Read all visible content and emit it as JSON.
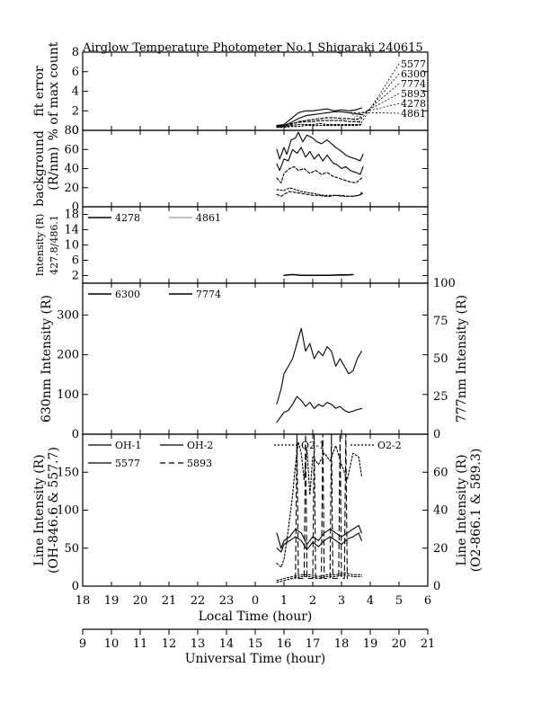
{
  "title": "Airglow Temperature Photometer No.1  Shigaraki  240615",
  "chart_data": [
    {
      "panel": "fit-error",
      "type": "line",
      "ylabel": [
        "fit error",
        "% of max count"
      ],
      "ylim": [
        0,
        8
      ],
      "yticks": [
        0,
        2,
        4,
        6,
        8
      ],
      "legend": [
        "5577",
        "6300",
        "7774",
        "5893",
        "4278",
        "4861"
      ],
      "series": [
        {
          "name": "5577",
          "x": [
            0.75,
            1.0,
            1.25,
            1.5,
            1.75,
            2.0,
            2.25,
            2.5,
            2.75,
            3.0,
            3.25,
            3.5,
            3.7
          ],
          "values": [
            0.5,
            0.6,
            1.2,
            1.8,
            2.0,
            2.0,
            2.1,
            2.2,
            2.0,
            2.1,
            2.0,
            2.1,
            2.3
          ]
        },
        {
          "name": "6300",
          "x": [
            0.75,
            1.0,
            1.25,
            1.5,
            1.75,
            2.0,
            2.25,
            2.5,
            2.75,
            3.0,
            3.25,
            3.5,
            3.7
          ],
          "values": [
            0.4,
            0.5,
            0.8,
            1.2,
            1.5,
            1.6,
            1.7,
            1.8,
            1.9,
            1.9,
            1.8,
            1.7,
            1.6
          ]
        },
        {
          "name": "7774",
          "x": [
            0.75,
            1.0,
            1.25,
            1.5,
            1.75,
            2.0,
            2.25,
            2.5,
            2.75,
            3.0,
            3.25,
            3.5,
            3.7
          ],
          "values": [
            0.3,
            0.4,
            0.6,
            0.9,
            1.0,
            1.1,
            1.2,
            1.3,
            1.3,
            1.2,
            1.2,
            1.1,
            1.3
          ]
        },
        {
          "name": "5893",
          "x": [
            0.75,
            1.0,
            1.25,
            1.5,
            1.75,
            2.0,
            2.25,
            2.5,
            2.75,
            3.0,
            3.25,
            3.5,
            3.7
          ],
          "values": [
            0.5,
            0.5,
            0.7,
            0.8,
            0.9,
            0.9,
            1.0,
            1.0,
            1.0,
            1.0,
            0.9,
            0.9,
            0.8
          ]
        },
        {
          "name": "4278",
          "x": [
            0.75,
            1.0,
            1.25,
            1.5,
            1.75,
            2.0,
            2.25,
            2.5,
            2.75,
            3.0,
            3.25,
            3.5,
            3.7
          ],
          "values": [
            0.4,
            0.4,
            0.5,
            0.6,
            0.6,
            0.6,
            0.7,
            0.6,
            0.6,
            0.6,
            0.6,
            0.6,
            0.6
          ]
        },
        {
          "name": "4861",
          "x": [
            0.75,
            1.0,
            1.25,
            1.5,
            1.75,
            2.0,
            2.25,
            2.5,
            2.75,
            3.0,
            3.25,
            3.5,
            3.7
          ],
          "values": [
            0.3,
            0.3,
            0.4,
            0.4,
            0.5,
            0.5,
            0.5,
            0.5,
            0.5,
            0.5,
            0.5,
            0.5,
            0.6
          ]
        }
      ]
    },
    {
      "panel": "background",
      "type": "line",
      "ylabel": [
        "background",
        "(R/nm)"
      ],
      "ylim": [
        0,
        80
      ],
      "yticks": [
        0,
        20,
        40,
        60,
        80
      ],
      "series": [
        {
          "x": [
            0.75,
            0.85,
            1.0,
            1.1,
            1.25,
            1.4,
            1.5,
            1.65,
            1.8,
            2.0,
            2.15,
            2.3,
            2.5,
            2.65,
            2.8,
            3.0,
            3.15,
            3.3,
            3.5,
            3.65,
            3.75
          ],
          "values": [
            60,
            50,
            62,
            55,
            70,
            72,
            78,
            68,
            75,
            72,
            68,
            66,
            70,
            66,
            62,
            58,
            54,
            52,
            50,
            48,
            55
          ]
        },
        {
          "x": [
            0.75,
            0.85,
            1.0,
            1.15,
            1.3,
            1.45,
            1.6,
            1.75,
            1.9,
            2.05,
            2.2,
            2.35,
            2.5,
            2.7,
            2.85,
            3.0,
            3.15,
            3.3,
            3.5,
            3.65,
            3.75
          ],
          "values": [
            45,
            38,
            50,
            48,
            60,
            56,
            62,
            52,
            58,
            50,
            55,
            48,
            54,
            46,
            44,
            40,
            42,
            38,
            36,
            34,
            42
          ]
        },
        {
          "x": [
            0.75,
            0.9,
            1.0,
            1.2,
            1.35,
            1.5,
            1.7,
            1.9,
            2.1,
            2.3,
            2.5,
            2.7,
            2.9,
            3.1,
            3.3,
            3.5,
            3.7
          ],
          "values": [
            30,
            25,
            35,
            40,
            42,
            38,
            40,
            35,
            38,
            34,
            36,
            32,
            30,
            28,
            26,
            25,
            30
          ]
        },
        {
          "x": [
            0.75,
            0.9,
            1.0,
            1.2,
            1.4,
            1.6,
            1.8,
            2.0,
            2.2,
            2.4,
            2.6,
            2.8,
            3.0,
            3.2,
            3.4,
            3.6,
            3.75
          ],
          "values": [
            13,
            11,
            13,
            16,
            15,
            14,
            13,
            12,
            12,
            11,
            11,
            12,
            12,
            11,
            11,
            12,
            14
          ]
        },
        {
          "x": [
            0.75,
            1.0,
            1.2,
            1.4,
            1.6,
            1.8,
            2.0,
            2.2,
            2.4,
            2.6,
            2.8,
            3.0,
            3.2,
            3.4,
            3.6,
            3.75
          ],
          "values": [
            18,
            17,
            20,
            18,
            16,
            15,
            14,
            13,
            12,
            12,
            12,
            11,
            11,
            11,
            12,
            16
          ]
        }
      ]
    },
    {
      "panel": "intensity-4278-4861",
      "type": "line",
      "ylabel": [
        "Intensity (R)",
        "427.8/486.1"
      ],
      "ylim": [
        0,
        20
      ],
      "yticks": [
        2,
        6,
        10,
        14,
        18
      ],
      "legend": [
        "4278",
        "4861"
      ],
      "series": [
        {
          "name": "4278",
          "x": [
            1.0,
            1.3,
            1.6,
            1.8,
            2.0,
            2.3,
            2.6,
            2.9,
            3.2,
            3.4
          ],
          "values": [
            2.0,
            2.2,
            2.0,
            2.0,
            2.0,
            2.0,
            2.0,
            2.1,
            2.1,
            2.2
          ]
        },
        {
          "name": "4861",
          "x": [
            1.0,
            1.3,
            1.6,
            1.8,
            2.0,
            2.3,
            2.6,
            2.9,
            3.2,
            3.4
          ],
          "values": [
            2.1,
            2.3,
            2.1,
            2.1,
            2.1,
            2.1,
            2.1,
            2.2,
            2.2,
            2.3
          ]
        }
      ]
    },
    {
      "panel": "intensity-6300-7774",
      "type": "line",
      "ylabel": "630nm Intensity (R)",
      "ylabel_right": "777nm Intensity (R)",
      "ylim": [
        0,
        380
      ],
      "yticks": [
        0,
        100,
        200,
        300
      ],
      "ylim_right": [
        0,
        100
      ],
      "yticks_right": [
        0,
        25,
        50,
        75,
        100
      ],
      "legend": [
        "6300",
        "7774"
      ],
      "series": [
        {
          "name": "6300",
          "x": [
            0.75,
            0.9,
            1.0,
            1.15,
            1.3,
            1.45,
            1.6,
            1.75,
            1.9,
            2.05,
            2.2,
            2.35,
            2.5,
            2.65,
            2.8,
            2.95,
            3.1,
            3.25,
            3.4,
            3.55,
            3.7
          ],
          "values": [
            30,
            45,
            55,
            60,
            75,
            95,
            85,
            70,
            80,
            65,
            75,
            70,
            80,
            75,
            65,
            70,
            60,
            55,
            58,
            62,
            65
          ]
        },
        {
          "name": "7774",
          "x": [
            0.75,
            0.9,
            1.0,
            1.15,
            1.3,
            1.45,
            1.6,
            1.75,
            1.9,
            2.05,
            2.2,
            2.35,
            2.5,
            2.65,
            2.8,
            2.95,
            3.1,
            3.25,
            3.4,
            3.55,
            3.7
          ],
          "values": [
            20,
            30,
            40,
            45,
            50,
            60,
            70,
            55,
            60,
            50,
            55,
            52,
            58,
            55,
            45,
            50,
            45,
            40,
            42,
            50,
            55
          ]
        }
      ]
    },
    {
      "panel": "line-intensity",
      "type": "line",
      "xlabel": "Local Time (hour)",
      "ylabel": [
        "Line Intensity (R)",
        "(OH-846.6 & 557.7)"
      ],
      "ylabel_right": [
        "Line Intensity (R)",
        "(O2-866.1 & 589.3)"
      ],
      "ylim": [
        0,
        200
      ],
      "yticks": [
        0,
        50,
        100,
        150
      ],
      "ylim_right": [
        0,
        80
      ],
      "yticks_right": [
        0,
        20,
        40,
        60
      ],
      "x_ticks_local": [
        "18",
        "19",
        "20",
        "21",
        "22",
        "23",
        "0",
        "1",
        "2",
        "3",
        "4",
        "5",
        "6"
      ],
      "x_ticks_ut": [
        "9",
        "10",
        "11",
        "12",
        "13",
        "14",
        "15",
        "16",
        "17",
        "18",
        "19",
        "20",
        "21"
      ],
      "xlabel_ut": "Universal Time (hour)",
      "legend": [
        "OH-1",
        "OH-2",
        "O2-1",
        "O2-2",
        "5577",
        "5893"
      ],
      "series": [
        {
          "name": "OH-1",
          "x": [
            0.75,
            0.9,
            1.0,
            1.2,
            1.4,
            1.6,
            1.8,
            2.0,
            2.2,
            2.4,
            2.6,
            2.8,
            3.0,
            3.2,
            3.4,
            3.6,
            3.7
          ],
          "values": [
            70,
            50,
            60,
            65,
            75,
            70,
            55,
            65,
            60,
            70,
            75,
            70,
            65,
            70,
            75,
            80,
            70
          ]
        },
        {
          "name": "OH-2",
          "x": [
            0.75,
            0.9,
            1.0,
            1.2,
            1.4,
            1.6,
            1.8,
            2.0,
            2.2,
            2.4,
            2.6,
            2.8,
            3.0,
            3.2,
            3.4,
            3.6,
            3.7
          ],
          "values": [
            50,
            45,
            55,
            60,
            65,
            60,
            48,
            58,
            52,
            60,
            65,
            60,
            55,
            62,
            65,
            70,
            60
          ]
        },
        {
          "name": "O2-1",
          "x": [
            0.75,
            1.0,
            1.3,
            1.6,
            1.9,
            2.2,
            2.5,
            2.8,
            3.1,
            3.4,
            3.7
          ],
          "values": [
            2,
            3,
            4,
            5,
            5,
            4,
            5,
            5,
            6,
            5,
            5
          ]
        },
        {
          "name": "O2-2",
          "x": [
            0.75,
            1.0,
            1.3,
            1.6,
            1.9,
            2.2,
            2.5,
            2.8,
            3.1,
            3.4,
            3.7
          ],
          "values": [
            3,
            4,
            5,
            6,
            6,
            5,
            6,
            6,
            7,
            6,
            6
          ]
        },
        {
          "name": "5577",
          "x": [
            0.75,
            0.9,
            1.0,
            1.1,
            1.2,
            1.3,
            1.4,
            1.5,
            1.6,
            1.7,
            1.8,
            1.9,
            2.0,
            2.2,
            2.4,
            2.6,
            2.8,
            3.0,
            3.2,
            3.4,
            3.6,
            3.7
          ],
          "values": [
            30,
            25,
            35,
            60,
            90,
            120,
            160,
            190,
            175,
            140,
            180,
            120,
            170,
            160,
            175,
            165,
            185,
            160,
            140,
            175,
            170,
            145
          ]
        },
        {
          "name": "5893",
          "x": [
            1.4,
            1.45,
            1.5,
            1.7,
            1.75,
            1.8,
            2.0,
            2.05,
            2.1,
            2.3,
            2.35,
            2.4,
            2.6,
            2.65,
            2.7,
            2.9,
            2.95,
            3.0,
            3.1,
            3.15,
            3.2
          ],
          "values": [
            10,
            200,
            10,
            10,
            200,
            10,
            10,
            200,
            10,
            10,
            200,
            10,
            10,
            200,
            10,
            10,
            200,
            10,
            10,
            200,
            10
          ]
        }
      ]
    }
  ]
}
